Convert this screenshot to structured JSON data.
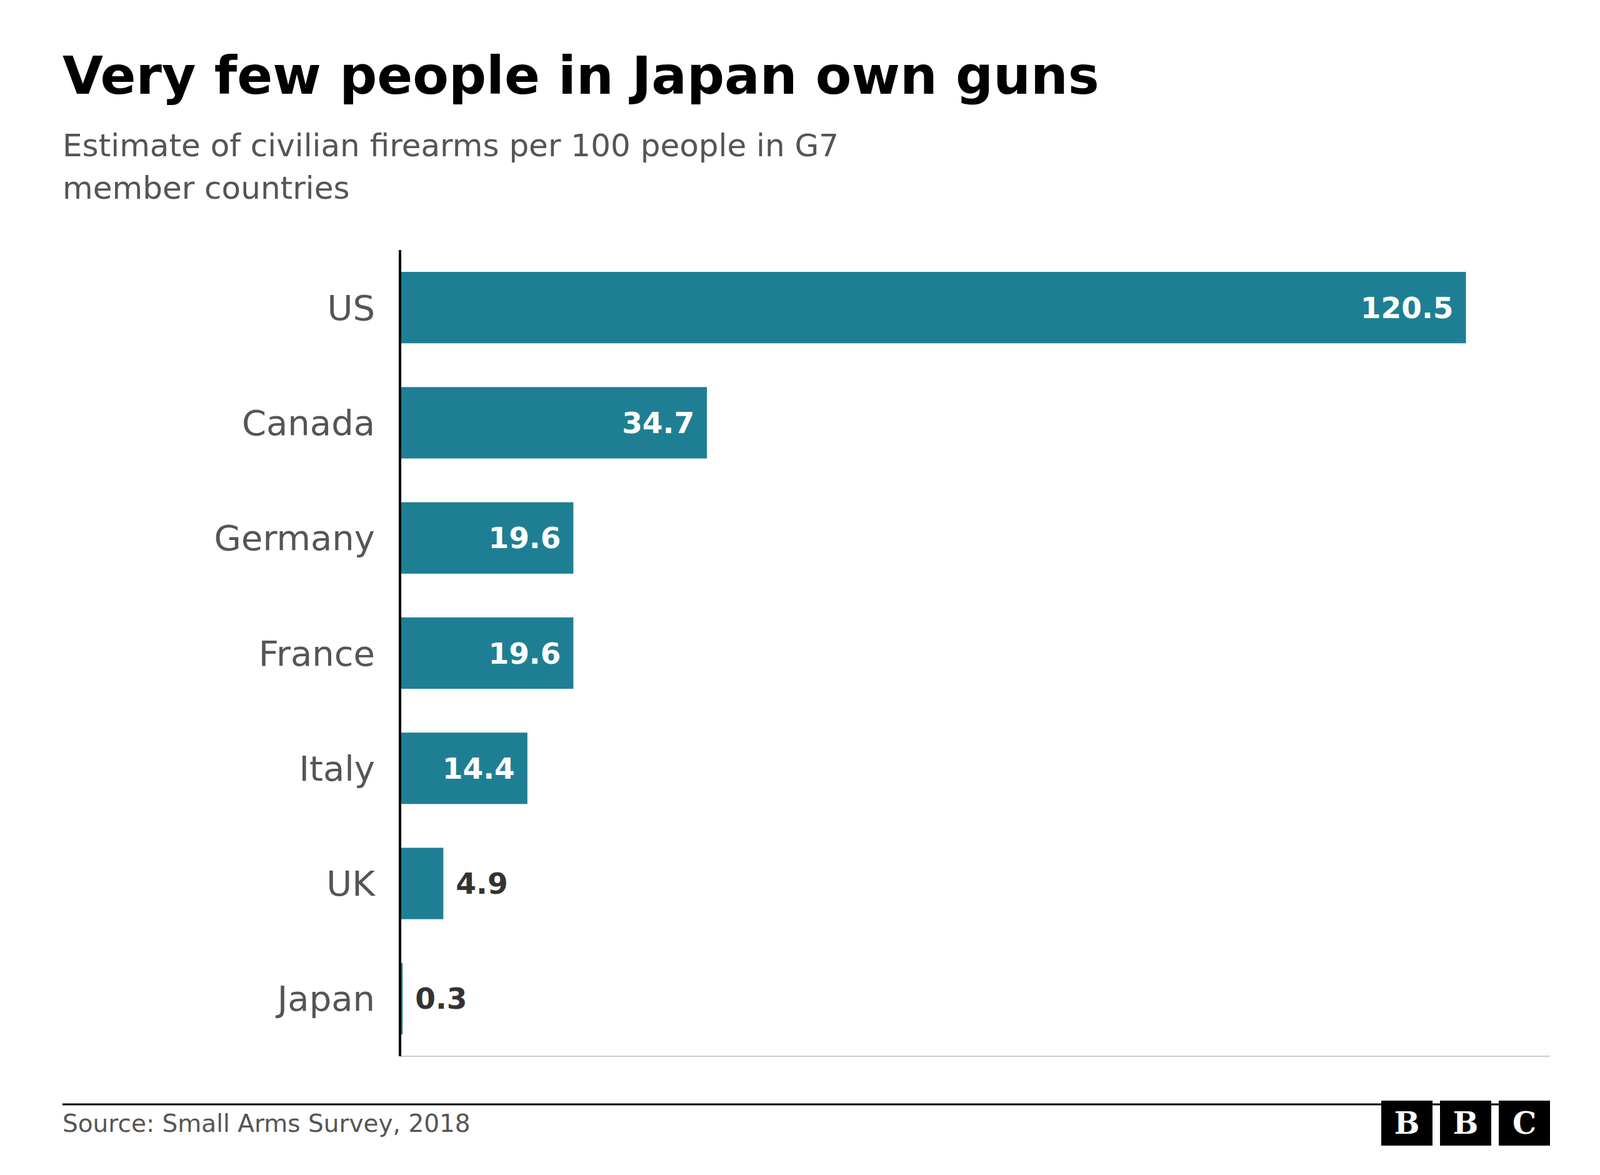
{
  "chart_data": {
    "type": "bar",
    "orientation": "horizontal",
    "title": "Very few people in Japan own guns",
    "subtitle": "Estimate of civilian firearms per 100 people in G7\nmember countries",
    "source": "Source: Small Arms Survey, 2018",
    "annotations": [
      "B",
      "B",
      "C"
    ],
    "categories": [
      "US",
      "Canada",
      "Germany",
      "France",
      "Italy",
      "UK",
      "Japan"
    ],
    "values": [
      120.5,
      34.7,
      19.6,
      19.6,
      14.4,
      4.9,
      0.3
    ],
    "color": "#1e7f94",
    "xlim": [
      0,
      130
    ],
    "xticks": [],
    "tick_labels": false,
    "grid": false,
    "data_labels": true
  }
}
